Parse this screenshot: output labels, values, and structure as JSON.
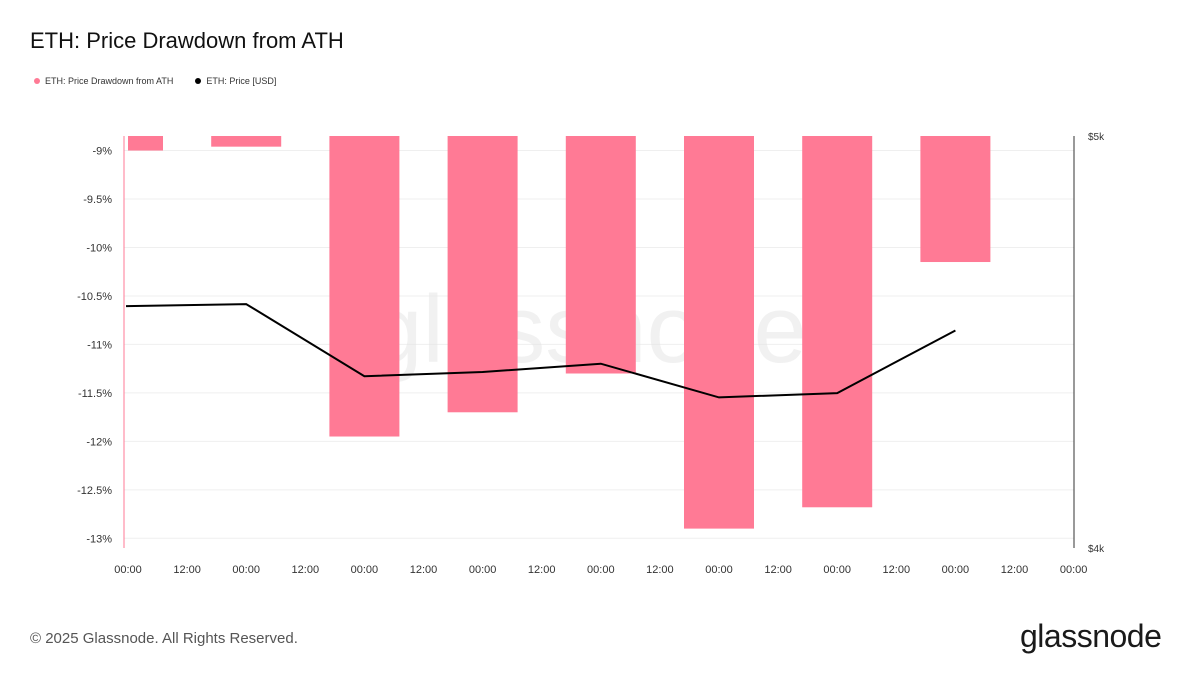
{
  "title": "ETH: Price Drawdown from ATH",
  "legend": {
    "items": [
      {
        "label": "ETH: Price Drawdown from ATH",
        "color": "#ff7a95"
      },
      {
        "label": "ETH: Price [USD]",
        "color": "#000000"
      }
    ]
  },
  "watermark": "glassnode",
  "footer": {
    "copyright": "© 2025 Glassnode. All Rights Reserved.",
    "brand": "glassnode"
  },
  "chart_data": {
    "type": "bar",
    "x_tick_labels": [
      "00:00",
      "12:00",
      "00:00",
      "12:00",
      "00:00",
      "12:00",
      "00:00",
      "12:00",
      "00:00",
      "12:00",
      "00:00",
      "12:00",
      "00:00",
      "12:00",
      "00:00",
      "12:00",
      "00:00"
    ],
    "left_axis": {
      "ticks": [
        -9,
        -9.5,
        -10,
        -10.5,
        -11,
        -11.5,
        -12,
        -12.5,
        -13
      ],
      "tick_labels": [
        "-9%",
        "-9.5%",
        "-10%",
        "-10.5%",
        "-11%",
        "-11.5%",
        "-12%",
        "-12.5%",
        "-13%"
      ],
      "range": [
        -13.1,
        -8.85
      ]
    },
    "right_axis": {
      "tick_labels": [
        "$5k",
        "$4k"
      ],
      "ticks": [
        5000,
        4000
      ],
      "range": [
        4000,
        5000
      ],
      "scale": "log"
    },
    "series": [
      {
        "name": "ETH: Price Drawdown from ATH",
        "type": "bar",
        "color": "#ff7a95",
        "x_index": [
          0.15,
          1,
          2,
          3,
          4,
          5,
          6,
          7
        ],
        "values": [
          -9.0,
          -8.96,
          -11.95,
          -11.7,
          -11.3,
          -12.9,
          -12.68,
          -10.15
        ]
      },
      {
        "name": "ETH: Price [USD]",
        "type": "line",
        "color": "#000000",
        "x_index": [
          0,
          1,
          2,
          3,
          4,
          5,
          6,
          7
        ],
        "values": [
          4560,
          4565,
          4390,
          4400,
          4420,
          4340,
          4350,
          4500
        ]
      }
    ],
    "grid": true
  }
}
